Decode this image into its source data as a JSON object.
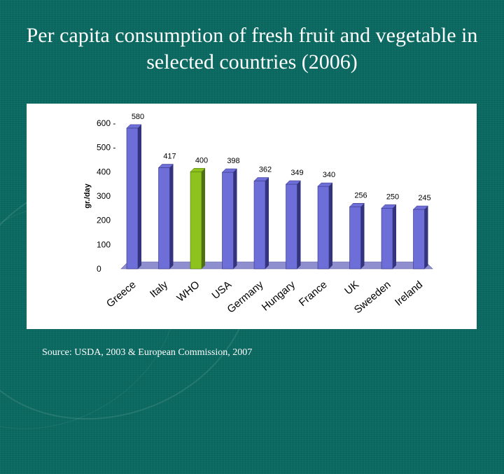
{
  "title": "Per capita consumption of fresh fruit and vegetable in selected countries (2006)",
  "source": "Source:  USDA, 2003 & European Commission, 2007",
  "colors": {
    "bar": "#6e6ed8",
    "bar_dark": "#34347e",
    "highlight": "#8ec21d",
    "highlight_dark": "#4f7010",
    "floor": "#8f8fd0",
    "background": "#0b6a62"
  },
  "chart_data": {
    "type": "bar",
    "categories": [
      "Greece",
      "Italy",
      "WHO",
      "USA",
      "Germany",
      "Hungary",
      "France",
      "UK",
      "Sweeden",
      "Ireland"
    ],
    "values": [
      580,
      417,
      400,
      398,
      362,
      349,
      340,
      256,
      250,
      245
    ],
    "data_labels": [
      "580",
      "417",
      "400",
      "398",
      "362",
      "349",
      "340",
      "256",
      "250",
      "245"
    ],
    "highlight_category": "WHO",
    "ylabel": "gr./day",
    "xlabel": "",
    "ylim": [
      0,
      600
    ],
    "yticks": [
      "0",
      "100",
      "200",
      "300",
      "400",
      "500 -",
      "600 -"
    ],
    "ytick_values": [
      0,
      100,
      200,
      300,
      400,
      500,
      600
    ],
    "grid": false,
    "legend": "none"
  }
}
